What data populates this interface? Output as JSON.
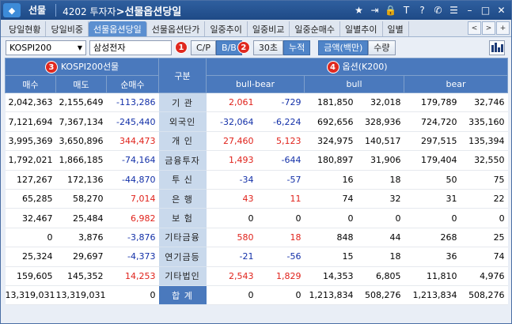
{
  "titlebar": {
    "menu_label": "선물",
    "screen_code": "4202 투자자",
    "screen_title": "선물옵션당일",
    "icons": [
      "star-icon",
      "export-icon",
      "lock-icon",
      "text-icon",
      "help-icon",
      "phone-icon",
      "list-icon",
      "minimize-icon",
      "maximize-icon",
      "close-icon"
    ]
  },
  "tabs": [
    {
      "label": "당일현황",
      "active": false
    },
    {
      "label": "당일비중",
      "active": false
    },
    {
      "label": "선물옵션당일",
      "active": true
    },
    {
      "label": "선물옵션단가",
      "active": false
    },
    {
      "label": "일중추이",
      "active": false
    },
    {
      "label": "일중비교",
      "active": false
    },
    {
      "label": "일중순매수",
      "active": false
    },
    {
      "label": "일별추이",
      "active": false
    },
    {
      "label": "일별",
      "active": false
    }
  ],
  "toolbar": {
    "code_select": "KOSPI200",
    "name_value": "삼성전자",
    "cp_label": "C/P",
    "bb_label": "B/B",
    "sec30_label": "30초",
    "cumulative_label": "누적",
    "amount_label": "금액(백만)",
    "qty_label": "수량",
    "badge1": "1",
    "badge2": "2"
  },
  "table": {
    "futures_header": "KOSPI200선물",
    "category_header": "구분",
    "options_header": "옵션(K200)",
    "badge3": "3",
    "badge4": "4",
    "sub_headers": [
      "매수",
      "매도",
      "순매수",
      "bull-bear",
      "bull",
      "bear"
    ],
    "rows": [
      {
        "cat": "기 관",
        "buy": "2,042,363",
        "sell": "2,155,649",
        "net": "-113,286",
        "bb1": "2,061",
        "bb2": "-729",
        "bull1": "181,850",
        "bull2": "32,018",
        "bear1": "179,789",
        "bear2": "32,746"
      },
      {
        "cat": "외국인",
        "buy": "7,121,694",
        "sell": "7,367,134",
        "net": "-245,440",
        "bb1": "-32,064",
        "bb2": "-6,224",
        "bull1": "692,656",
        "bull2": "328,936",
        "bear1": "724,720",
        "bear2": "335,160"
      },
      {
        "cat": "개 인",
        "buy": "3,995,369",
        "sell": "3,650,896",
        "net": "344,473",
        "bb1": "27,460",
        "bb2": "5,123",
        "bull1": "324,975",
        "bull2": "140,517",
        "bear1": "297,515",
        "bear2": "135,394"
      },
      {
        "cat": "금융투자",
        "buy": "1,792,021",
        "sell": "1,866,185",
        "net": "-74,164",
        "bb1": "1,493",
        "bb2": "-644",
        "bull1": "180,897",
        "bull2": "31,906",
        "bear1": "179,404",
        "bear2": "32,550"
      },
      {
        "cat": "투 신",
        "buy": "127,267",
        "sell": "172,136",
        "net": "-44,870",
        "bb1": "-34",
        "bb2": "-57",
        "bull1": "16",
        "bull2": "18",
        "bear1": "50",
        "bear2": "75"
      },
      {
        "cat": "은 행",
        "buy": "65,285",
        "sell": "58,270",
        "net": "7,014",
        "bb1": "43",
        "bb2": "11",
        "bull1": "74",
        "bull2": "32",
        "bear1": "31",
        "bear2": "22"
      },
      {
        "cat": "보 험",
        "buy": "32,467",
        "sell": "25,484",
        "net": "6,982",
        "bb1": "0",
        "bb2": "0",
        "bull1": "0",
        "bull2": "0",
        "bear1": "0",
        "bear2": "0"
      },
      {
        "cat": "기타금융",
        "buy": "0",
        "sell": "3,876",
        "net": "-3,876",
        "bb1": "580",
        "bb2": "18",
        "bull1": "848",
        "bull2": "44",
        "bear1": "268",
        "bear2": "25"
      },
      {
        "cat": "연기금등",
        "buy": "25,324",
        "sell": "29,697",
        "net": "-4,373",
        "bb1": "-21",
        "bb2": "-56",
        "bull1": "15",
        "bull2": "18",
        "bear1": "36",
        "bear2": "74"
      },
      {
        "cat": "기타법인",
        "buy": "159,605",
        "sell": "145,352",
        "net": "14,253",
        "bb1": "2,543",
        "bb2": "1,829",
        "bull1": "14,353",
        "bull2": "6,805",
        "bear1": "11,810",
        "bear2": "4,976"
      },
      {
        "cat": "합 계",
        "buy": "13,319,031",
        "sell": "13,319,031",
        "net": "0",
        "bb1": "0",
        "bb2": "0",
        "bull1": "1,213,834",
        "bull2": "508,276",
        "bear1": "1,213,834",
        "bear2": "508,276"
      }
    ]
  },
  "colors": {
    "positive": "#e0221b",
    "negative": "#1330a8",
    "header": "#4a79bd"
  }
}
